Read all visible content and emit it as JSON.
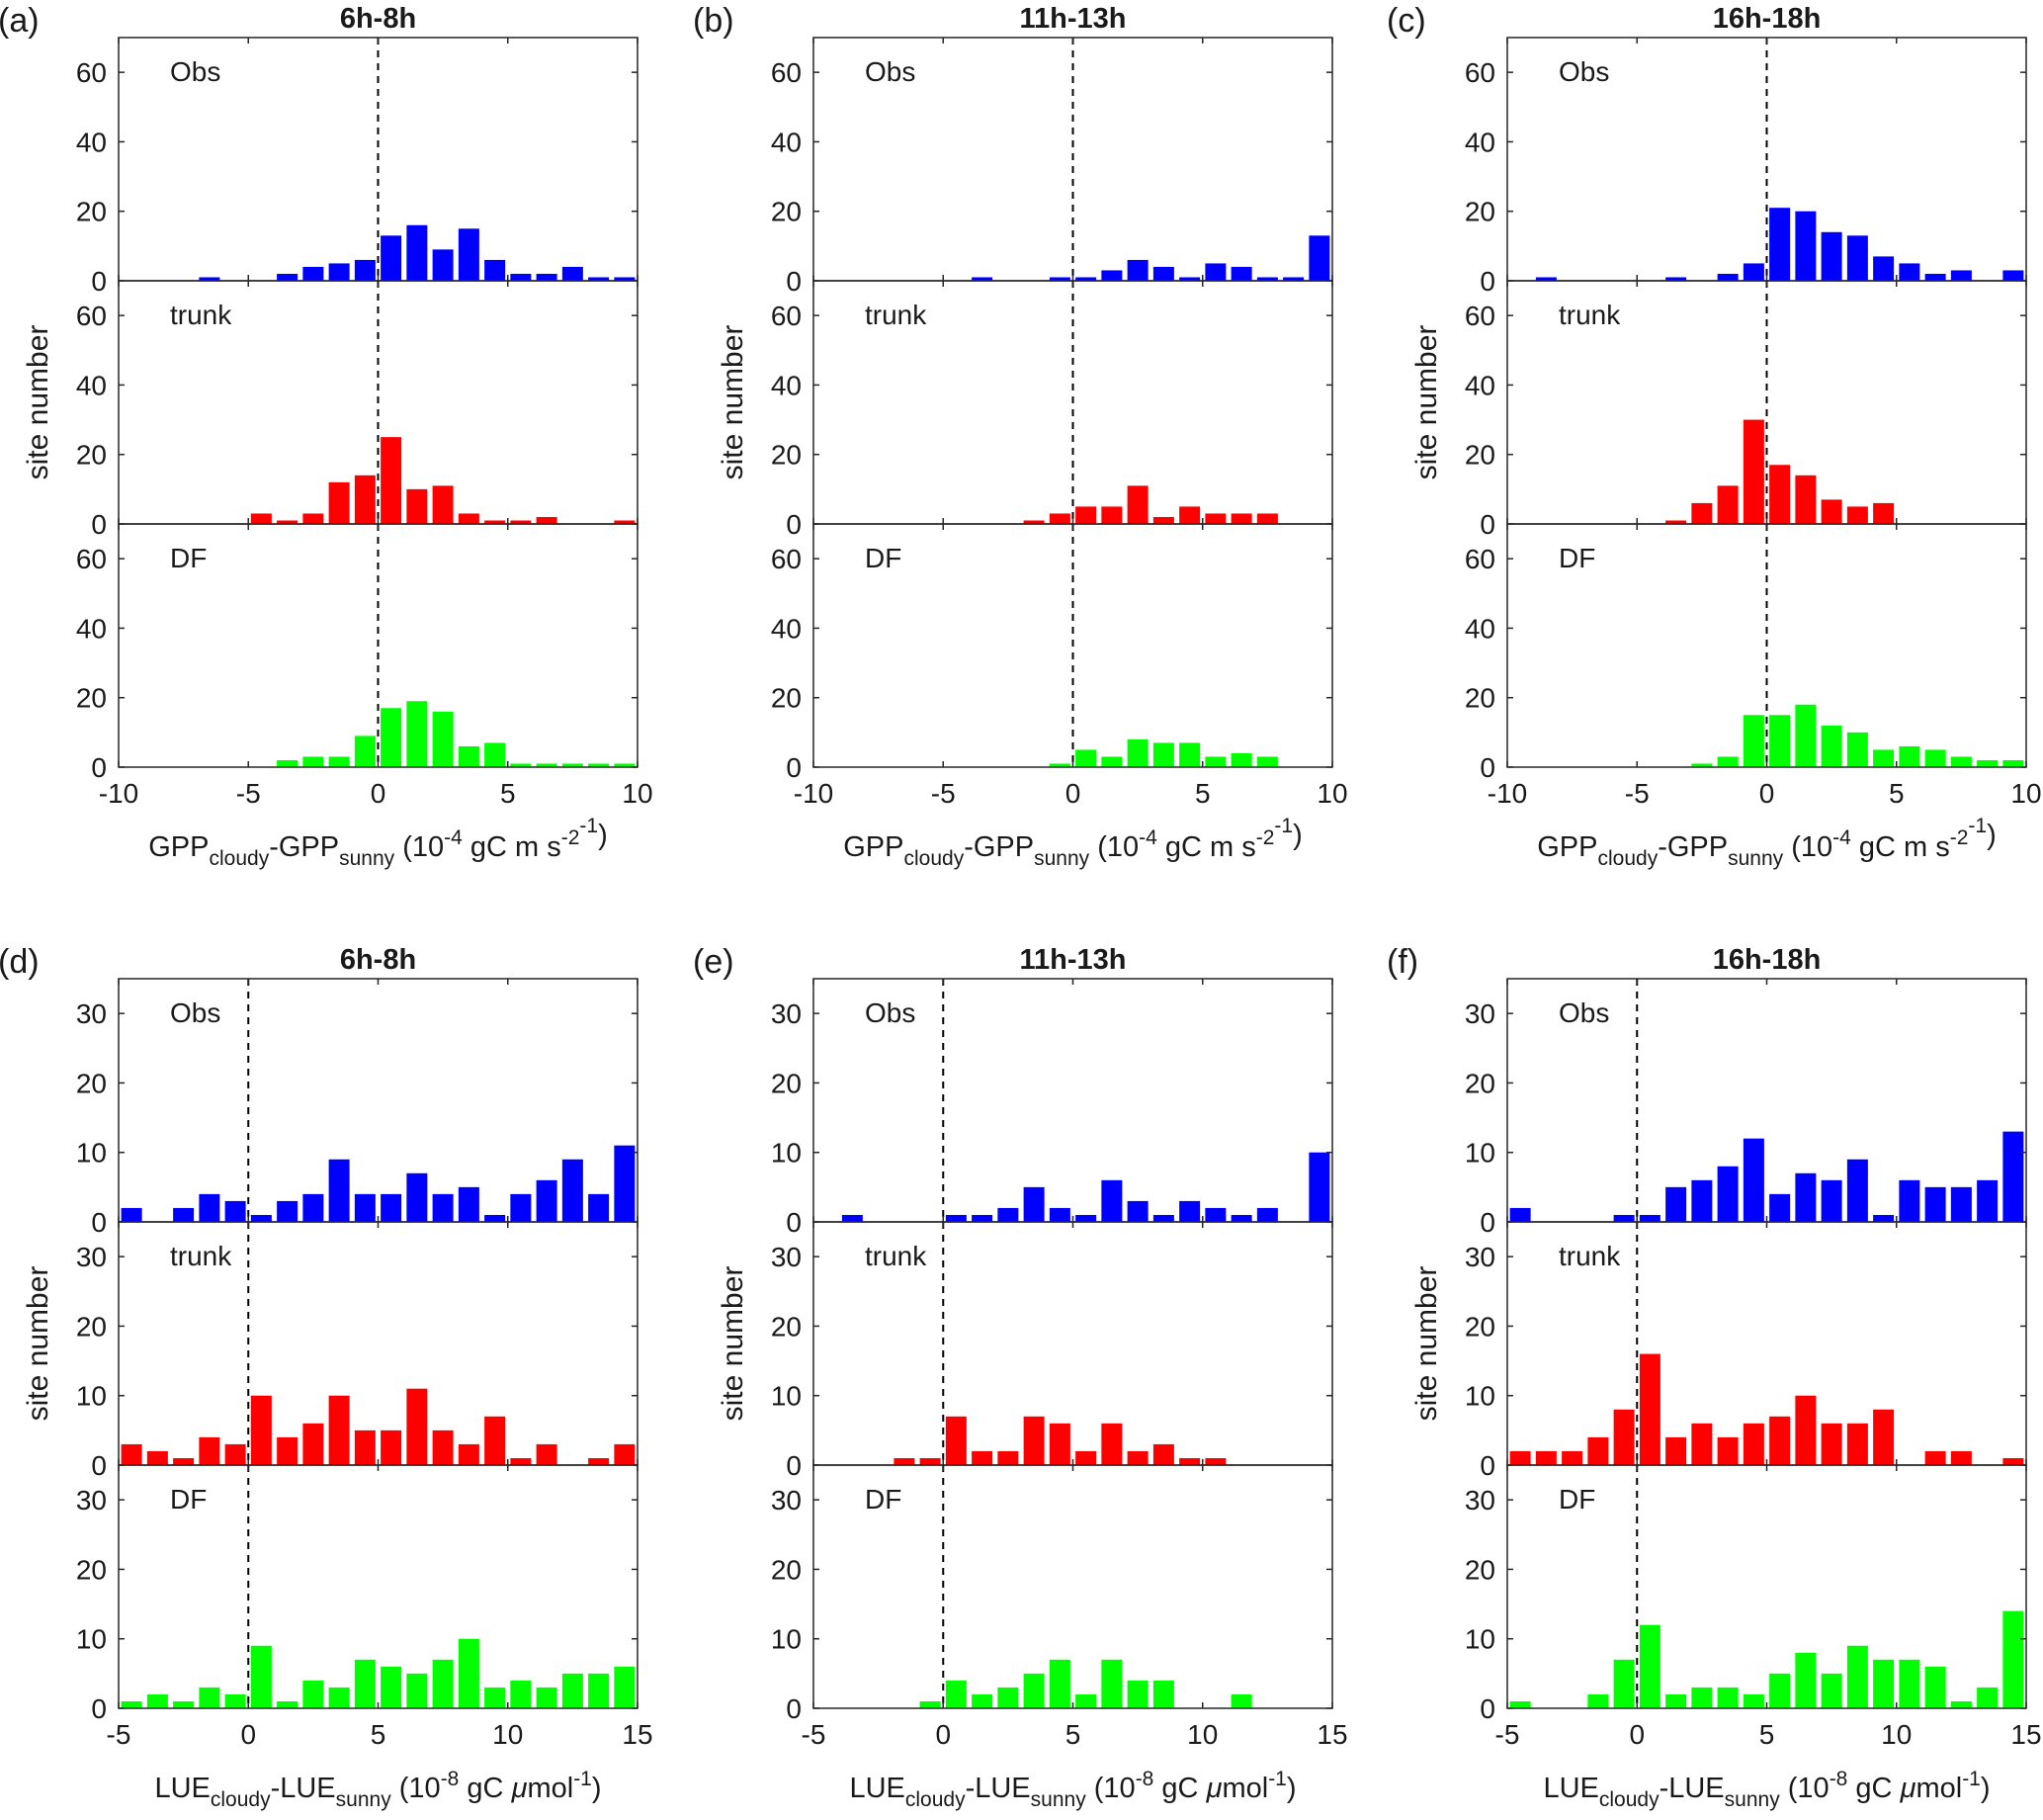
{
  "series_labels": [
    "Obs",
    "trunk",
    "DF"
  ],
  "series_colors": [
    "#0000ff",
    "#ff0000",
    "#00ff00"
  ],
  "ylabel": "site number",
  "gpp_xlabel": {
    "base1": "GPP",
    "sub1": "cloudy",
    "mid": "-GPP",
    "sub2": "sunny",
    "unit": " (10",
    "exp1": "-4",
    "unit2": " gC m",
    "exp2": "-2",
    "unit3": " s",
    "exp3": "-1",
    "close": ")"
  },
  "lue_xlabel": {
    "base1": "LUE",
    "sub1": "cloudy",
    "mid": "-LUE",
    "sub2": "sunny",
    "unit": " (10",
    "exp1": "-8",
    "unit2": " gC ",
    "mu": "μ",
    "unit3": "mol",
    "exp3": "-1",
    "close": ")"
  },
  "chart_data": [
    {
      "type": "bar",
      "panel": "(a)",
      "title": "6h-8h",
      "xlim": [
        -10,
        10
      ],
      "xticks": [
        -10,
        -5,
        0,
        5,
        10
      ],
      "ylim": [
        0,
        70
      ],
      "yticks": [
        0,
        20,
        40,
        60
      ],
      "bin_width": 1,
      "x": [
        -9.5,
        -8.5,
        -7.5,
        -6.5,
        -5.5,
        -4.5,
        -3.5,
        -2.5,
        -1.5,
        -0.5,
        0.5,
        1.5,
        2.5,
        3.5,
        4.5,
        5.5,
        6.5,
        7.5,
        8.5,
        9.5
      ],
      "series": [
        {
          "name": "Obs",
          "values": [
            0,
            0,
            0,
            1,
            0,
            0,
            2,
            4,
            5,
            6,
            13,
            16,
            9,
            15,
            6,
            2,
            2,
            4,
            1,
            1
          ]
        },
        {
          "name": "trunk",
          "values": [
            0,
            0,
            0,
            0,
            0,
            3,
            1,
            3,
            12,
            14,
            25,
            10,
            11,
            3,
            1,
            1,
            2,
            0,
            0,
            1
          ]
        },
        {
          "name": "DF",
          "values": [
            0,
            0,
            0,
            0,
            0,
            0,
            2,
            3,
            3,
            9,
            17,
            19,
            16,
            6,
            7,
            1,
            1,
            1,
            1,
            1
          ]
        }
      ]
    },
    {
      "type": "bar",
      "panel": "(b)",
      "title": "11h-13h",
      "xlim": [
        -10,
        10
      ],
      "xticks": [
        -10,
        -5,
        0,
        5,
        10
      ],
      "ylim": [
        0,
        70
      ],
      "yticks": [
        0,
        20,
        40,
        60
      ],
      "bin_width": 1,
      "x": [
        -9.5,
        -8.5,
        -7.5,
        -6.5,
        -5.5,
        -4.5,
        -3.5,
        -2.5,
        -1.5,
        -0.5,
        0.5,
        1.5,
        2.5,
        3.5,
        4.5,
        5.5,
        6.5,
        7.5,
        8.5,
        9.5
      ],
      "series": [
        {
          "name": "Obs",
          "values": [
            0,
            0,
            0,
            0,
            0,
            0,
            1,
            0,
            0,
            1,
            1,
            3,
            6,
            4,
            1,
            5,
            4,
            1,
            1,
            13
          ]
        },
        {
          "name": "trunk",
          "values": [
            0,
            0,
            0,
            0,
            0,
            0,
            0,
            0,
            1,
            3,
            5,
            5,
            11,
            2,
            5,
            3,
            3,
            3,
            0,
            0
          ]
        },
        {
          "name": "DF",
          "values": [
            0,
            0,
            0,
            0,
            0,
            0,
            0,
            0,
            0,
            1,
            5,
            3,
            8,
            7,
            7,
            3,
            4,
            3,
            0,
            0
          ]
        }
      ]
    },
    {
      "type": "bar",
      "panel": "(c)",
      "title": "16h-18h",
      "xlim": [
        -10,
        10
      ],
      "xticks": [
        -10,
        -5,
        0,
        5,
        10
      ],
      "ylim": [
        0,
        70
      ],
      "yticks": [
        0,
        20,
        40,
        60
      ],
      "bin_width": 1,
      "x": [
        -9.5,
        -8.5,
        -7.5,
        -6.5,
        -5.5,
        -4.5,
        -3.5,
        -2.5,
        -1.5,
        -0.5,
        0.5,
        1.5,
        2.5,
        3.5,
        4.5,
        5.5,
        6.5,
        7.5,
        8.5,
        9.5
      ],
      "series": [
        {
          "name": "Obs",
          "values": [
            0,
            1,
            0,
            0,
            0,
            0,
            1,
            0,
            2,
            5,
            21,
            20,
            14,
            13,
            7,
            5,
            2,
            3,
            0,
            3
          ]
        },
        {
          "name": "trunk",
          "values": [
            0,
            0,
            0,
            0,
            0,
            0,
            1,
            6,
            11,
            30,
            17,
            14,
            7,
            5,
            6,
            0,
            0,
            0,
            0,
            0
          ]
        },
        {
          "name": "DF",
          "values": [
            0,
            0,
            0,
            0,
            0,
            0,
            0,
            1,
            3,
            15,
            15,
            18,
            12,
            10,
            5,
            6,
            5,
            3,
            2,
            2
          ]
        }
      ]
    },
    {
      "type": "bar",
      "panel": "(d)",
      "title": "6h-8h",
      "xlim": [
        -5,
        15
      ],
      "xticks": [
        -5,
        0,
        5,
        10,
        15
      ],
      "ylim": [
        0,
        35
      ],
      "yticks": [
        0,
        10,
        20,
        30
      ],
      "bin_width": 1,
      "x": [
        -4.5,
        -3.5,
        -2.5,
        -1.5,
        -0.5,
        0.5,
        1.5,
        2.5,
        3.5,
        4.5,
        5.5,
        6.5,
        7.5,
        8.5,
        9.5,
        10.5,
        11.5,
        12.5,
        13.5,
        14.5
      ],
      "series": [
        {
          "name": "Obs",
          "values": [
            2,
            0,
            2,
            4,
            3,
            1,
            3,
            4,
            9,
            4,
            4,
            7,
            4,
            5,
            1,
            4,
            6,
            9,
            4,
            11
          ]
        },
        {
          "name": "trunk",
          "values": [
            3,
            2,
            1,
            4,
            3,
            10,
            4,
            6,
            10,
            5,
            5,
            11,
            5,
            3,
            7,
            1,
            3,
            0,
            1,
            3
          ]
        },
        {
          "name": "DF",
          "values": [
            1,
            2,
            1,
            3,
            2,
            9,
            1,
            4,
            3,
            7,
            6,
            5,
            7,
            10,
            3,
            4,
            3,
            5,
            5,
            6
          ]
        }
      ]
    },
    {
      "type": "bar",
      "panel": "(e)",
      "title": "11h-13h",
      "xlim": [
        -5,
        15
      ],
      "xticks": [
        -5,
        0,
        5,
        10,
        15
      ],
      "ylim": [
        0,
        35
      ],
      "yticks": [
        0,
        10,
        20,
        30
      ],
      "bin_width": 1,
      "x": [
        -4.5,
        -3.5,
        -2.5,
        -1.5,
        -0.5,
        0.5,
        1.5,
        2.5,
        3.5,
        4.5,
        5.5,
        6.5,
        7.5,
        8.5,
        9.5,
        10.5,
        11.5,
        12.5,
        13.5,
        14.5
      ],
      "series": [
        {
          "name": "Obs",
          "values": [
            0,
            1,
            0,
            0,
            0,
            1,
            1,
            2,
            5,
            2,
            1,
            6,
            3,
            1,
            3,
            2,
            1,
            2,
            0,
            10
          ]
        },
        {
          "name": "trunk",
          "values": [
            0,
            0,
            0,
            1,
            1,
            7,
            2,
            2,
            7,
            6,
            2,
            6,
            2,
            3,
            1,
            1,
            0,
            0,
            0,
            0
          ]
        },
        {
          "name": "DF",
          "values": [
            0,
            0,
            0,
            0,
            1,
            4,
            2,
            3,
            5,
            7,
            2,
            7,
            4,
            4,
            0,
            0,
            2,
            0,
            0,
            0
          ]
        }
      ]
    },
    {
      "type": "bar",
      "panel": "(f)",
      "title": "16h-18h",
      "xlim": [
        -5,
        15
      ],
      "xticks": [
        -5,
        0,
        5,
        10,
        15
      ],
      "ylim": [
        0,
        35
      ],
      "yticks": [
        0,
        10,
        20,
        30
      ],
      "bin_width": 1,
      "x": [
        -4.5,
        -3.5,
        -2.5,
        -1.5,
        -0.5,
        0.5,
        1.5,
        2.5,
        3.5,
        4.5,
        5.5,
        6.5,
        7.5,
        8.5,
        9.5,
        10.5,
        11.5,
        12.5,
        13.5,
        14.5
      ],
      "series": [
        {
          "name": "Obs",
          "values": [
            2,
            0,
            0,
            0,
            1,
            1,
            5,
            6,
            8,
            12,
            4,
            7,
            6,
            9,
            1,
            6,
            5,
            5,
            6,
            13
          ]
        },
        {
          "name": "trunk",
          "values": [
            2,
            2,
            2,
            4,
            8,
            16,
            4,
            6,
            4,
            6,
            7,
            10,
            6,
            6,
            8,
            0,
            2,
            2,
            0,
            1
          ]
        },
        {
          "name": "DF",
          "values": [
            1,
            0,
            0,
            2,
            7,
            12,
            2,
            3,
            3,
            2,
            5,
            8,
            5,
            9,
            7,
            7,
            6,
            1,
            3,
            14
          ]
        }
      ]
    }
  ]
}
